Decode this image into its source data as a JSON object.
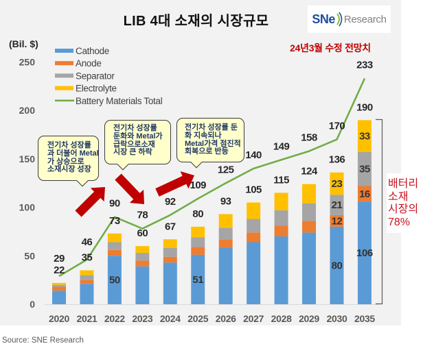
{
  "header": {
    "title": "LIB 4대 소재의 시장규모",
    "logo": {
      "brand": "SNe",
      "suffix": "Research"
    }
  },
  "colors": {
    "annotation_red": "#C00000",
    "share_note_red": "#C9111E",
    "arrow_red": "#C00000",
    "callout_bg": "#FFFFCC",
    "callout_text": "#1F3864",
    "logo_blue": "#1F4E9A"
  },
  "annotations": {
    "forecast_note": "24년3월  수정 전망치",
    "share_note": [
      "배터리",
      "소재",
      "시장의",
      "78%"
    ],
    "callouts": [
      {
        "lines": [
          "전기차 성장률",
          "과 더불어 Metal",
          "가 상승으로",
          "소재시장 성장"
        ]
      },
      {
        "lines": [
          "전기차 성장률",
          "둔화와 Metal가",
          "급락으로소재",
          "시장 큰 하락"
        ]
      },
      {
        "lines": [
          "전기차 성장률 둔",
          "화 지속되나",
          "Metal가격 점진적",
          "회복으로 반등"
        ]
      }
    ],
    "trend_arrows": [
      "up",
      "down",
      "up"
    ]
  },
  "source": "Source: SNE Research",
  "chart_data": {
    "type": "bar",
    "subtype": "stacked bar with total line",
    "title": "LIB 4대 소재의 시장규모",
    "xlabel": "",
    "ylabel": "(Bil. $)",
    "ylim": [
      0,
      250
    ],
    "yticks": [
      0,
      50,
      100,
      150,
      200,
      250
    ],
    "grid": false,
    "legend": {
      "position": "top-left"
    },
    "categories": [
      "2020",
      "2021",
      "2022",
      "2023",
      "2024",
      "2025",
      "2026",
      "2027",
      "2028",
      "2029",
      "2030",
      "2035"
    ],
    "series": [
      {
        "name": "Cathode",
        "type": "bar",
        "color": "#5B9BD5",
        "values": [
          14,
          21,
          50,
          39,
          43,
          51,
          58,
          64,
          70,
          74,
          80,
          106
        ],
        "labeled_indices": [
          2,
          5,
          10,
          11
        ]
      },
      {
        "name": "Anode",
        "type": "bar",
        "color": "#ED7D31",
        "values": [
          4,
          4,
          6,
          6,
          6,
          8,
          9,
          10,
          11,
          12,
          12,
          16
        ],
        "labeled_indices": [
          10,
          11
        ]
      },
      {
        "name": "Separator",
        "type": "bar",
        "color": "#A5A5A5",
        "values": [
          2,
          5,
          8,
          8,
          9,
          10,
          12,
          14,
          16,
          18,
          21,
          35
        ],
        "labeled_indices": [
          10,
          11
        ]
      },
      {
        "name": "Electrolyte",
        "type": "bar",
        "color": "#FFC000",
        "values": [
          2,
          5,
          9,
          7,
          9,
          11,
          14,
          17,
          18,
          20,
          23,
          33
        ],
        "labeled_indices": [
          10,
          11
        ]
      },
      {
        "name": "Battery Materials Total",
        "type": "line",
        "color": "#70AD47",
        "values": [
          29,
          46,
          90,
          78,
          92,
          109,
          125,
          140,
          149,
          158,
          170,
          233
        ]
      }
    ],
    "bar_totals": [
      22,
      35,
      73,
      60,
      67,
      80,
      93,
      105,
      115,
      124,
      136,
      190
    ],
    "annotations": {
      "forecast_note": "24년3월  수정 전망치",
      "bracket_note": "배터리 소재 시장의 78%"
    }
  }
}
